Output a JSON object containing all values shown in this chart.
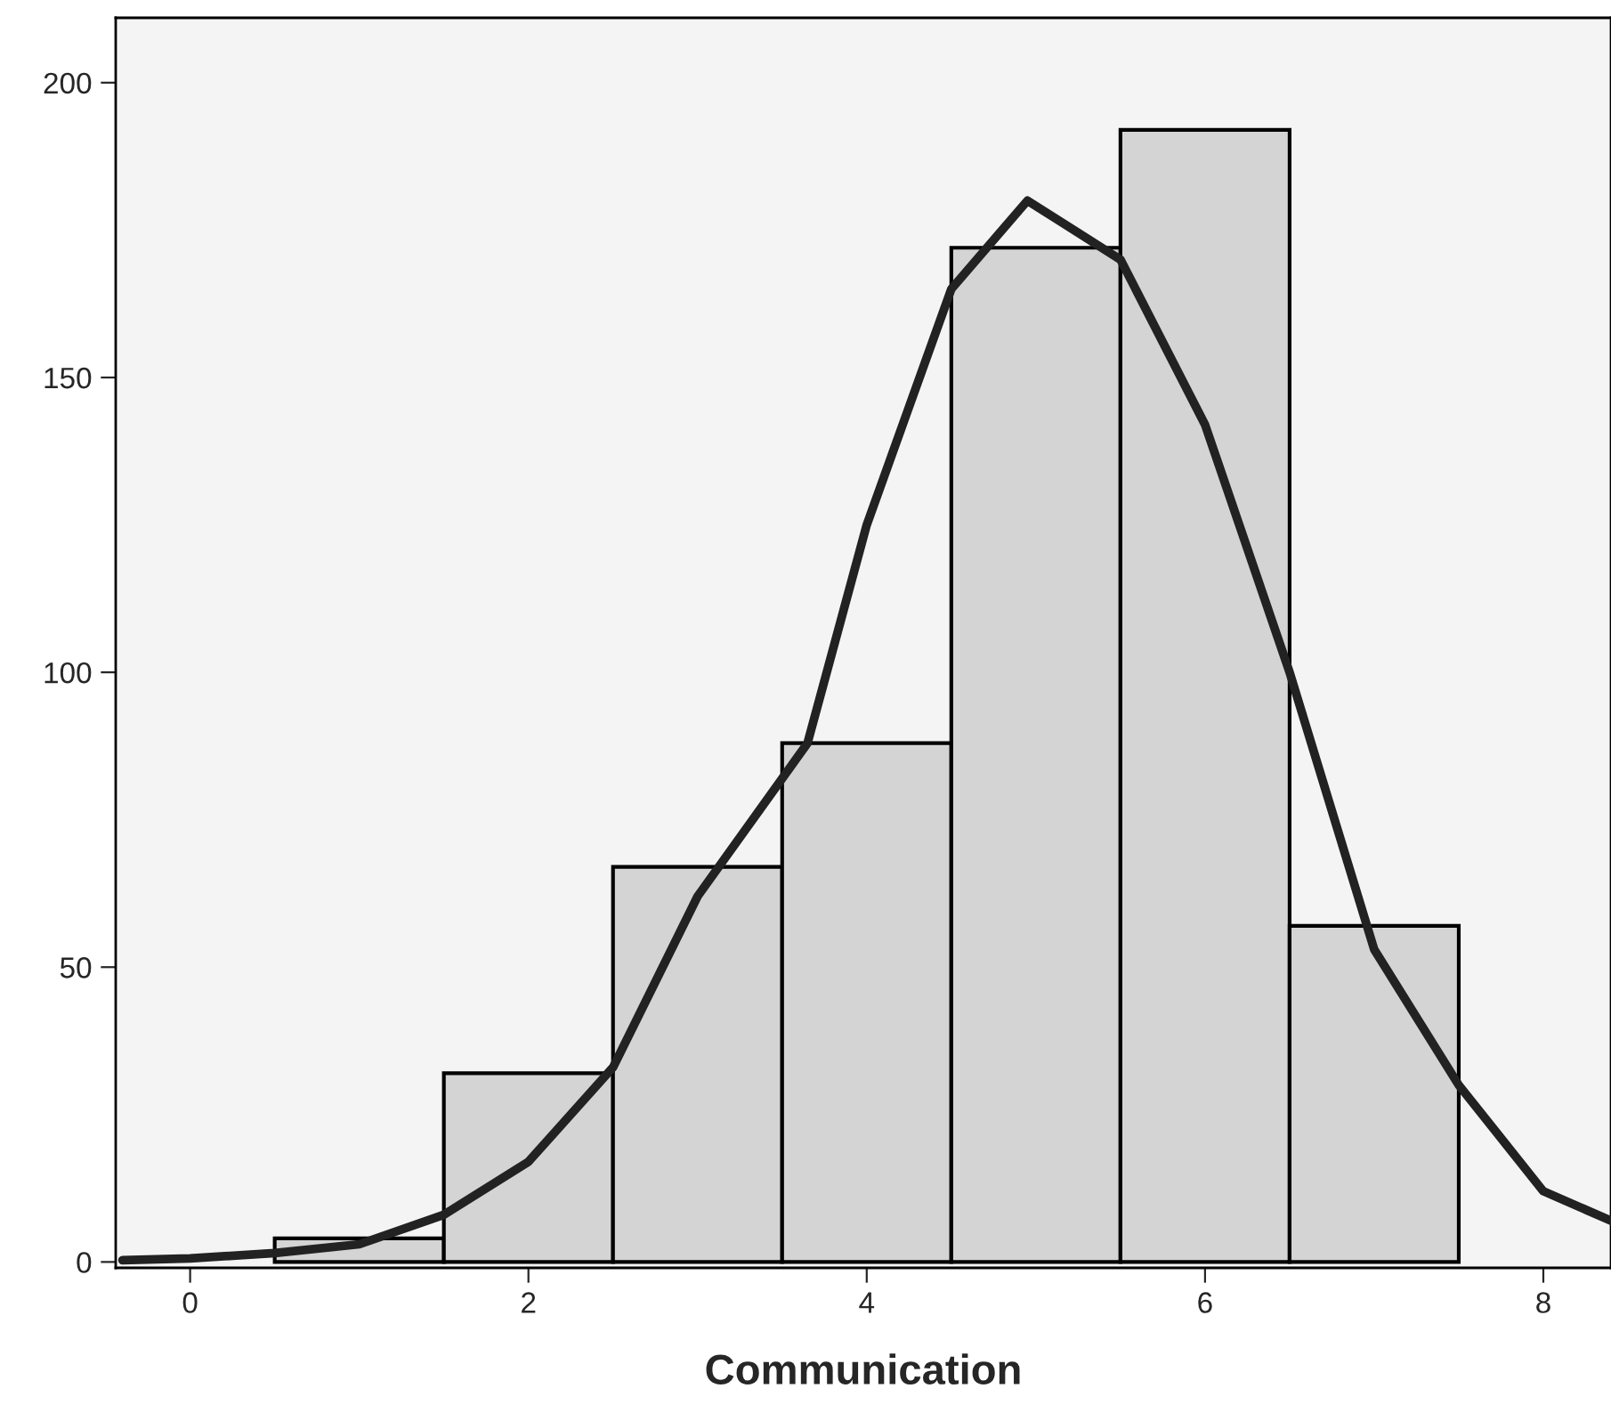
{
  "chart_data": {
    "type": "histogram",
    "xlabel": "Communication",
    "bins": [
      0.5,
      1.5,
      2.5,
      3.5,
      4.5,
      5.5,
      6.5,
      7.5
    ],
    "values": [
      4,
      32,
      67,
      88,
      172,
      192,
      57
    ],
    "color": "#d4d4d4",
    "series": [
      {
        "type": "line",
        "color": "#222222",
        "x": [
          -0.4,
          0,
          0.5,
          1,
          1.5,
          2,
          2.5,
          3,
          3.5,
          3.65,
          4,
          4.5,
          4.95,
          5.5,
          6,
          6.5,
          7,
          7.5,
          8,
          8.4
        ],
        "values": [
          0.3,
          0.6,
          1.5,
          3,
          8,
          17,
          33,
          62,
          82,
          88,
          125,
          165,
          180,
          170,
          142,
          100,
          53,
          30,
          12,
          7
        ]
      }
    ],
    "xlim": [
      -0.44,
      8.4
    ],
    "ylim": [
      -1,
      211
    ],
    "xticks": [
      0,
      2,
      4,
      6,
      8
    ],
    "yticks": [
      0,
      50,
      100,
      150,
      200
    ],
    "grid": false,
    "legend": false
  }
}
